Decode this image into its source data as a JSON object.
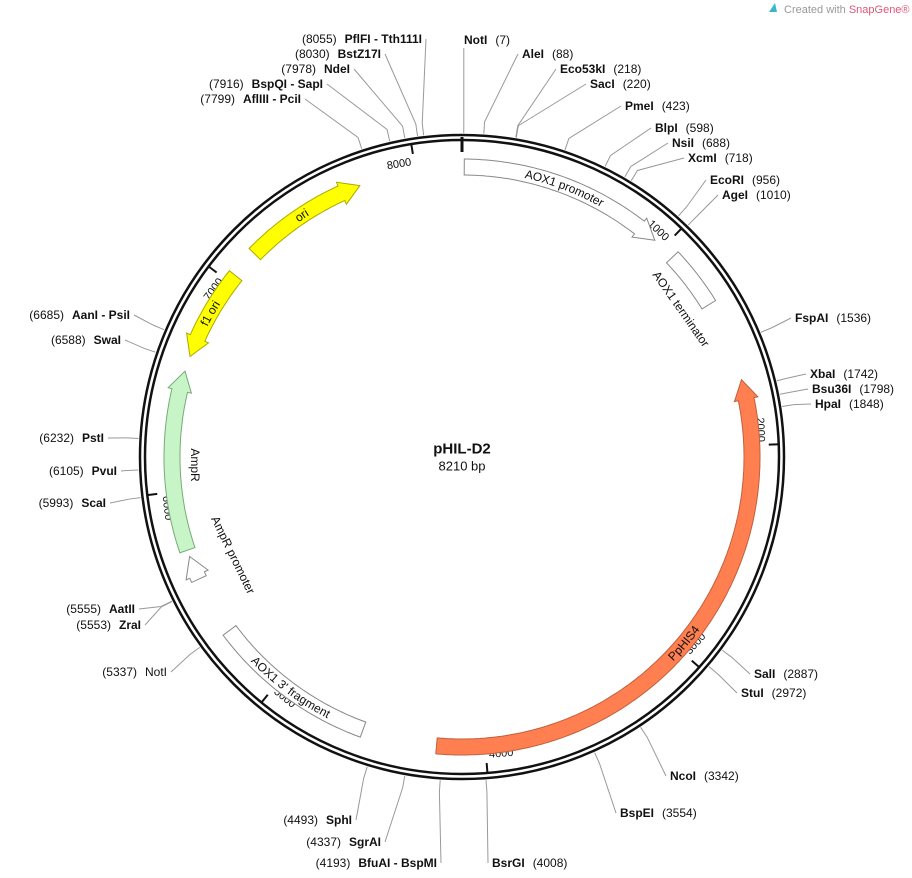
{
  "watermark": {
    "prefix": "Created with",
    "brand": "SnapGene®"
  },
  "map": {
    "name": "pHIL-D2",
    "length": {
      "value": 8210,
      "label": "8210 bp"
    },
    "ticks": [
      1000,
      2000,
      3000,
      4000,
      5000,
      6000,
      7000,
      8000
    ],
    "features": [
      {
        "name": "AOX1 promoter"
      },
      {
        "name": "AOX1 terminator"
      },
      {
        "name": "PpHIS4"
      },
      {
        "name": "AOX1 3' fragment"
      },
      {
        "name": "AmpR promoter"
      },
      {
        "name": "AmpR"
      },
      {
        "name": "f1 ori"
      },
      {
        "name": "ori"
      }
    ],
    "sites": [
      {
        "name": "NotI",
        "position": {
          "value": 7,
          "label": "(7)"
        }
      },
      {
        "name": "AleI",
        "position": {
          "value": 88,
          "label": "(88)"
        }
      },
      {
        "name": "Eco53kI",
        "position": {
          "value": 218,
          "label": "(218)"
        }
      },
      {
        "name": "SacI",
        "position": {
          "value": 220,
          "label": "(220)"
        }
      },
      {
        "name": "PmeI",
        "position": {
          "value": 423,
          "label": "(423)"
        }
      },
      {
        "name": "BlpI",
        "position": {
          "value": 598,
          "label": "(598)"
        }
      },
      {
        "name": "NsiI",
        "position": {
          "value": 688,
          "label": "(688)"
        }
      },
      {
        "name": "XcmI",
        "position": {
          "value": 718,
          "label": "(718)"
        }
      },
      {
        "name": "EcoRI",
        "position": {
          "value": 956,
          "label": "(956)"
        }
      },
      {
        "name": "AgeI",
        "position": {
          "value": 1010,
          "label": "(1010)"
        }
      },
      {
        "name": "FspAI",
        "position": {
          "value": 1536,
          "label": "(1536)"
        }
      },
      {
        "name": "XbaI",
        "position": {
          "value": 1742,
          "label": "(1742)"
        }
      },
      {
        "name": "Bsu36I",
        "position": {
          "value": 1798,
          "label": "(1798)"
        }
      },
      {
        "name": "HpaI",
        "position": {
          "value": 1848,
          "label": "(1848)"
        }
      },
      {
        "name": "SalI",
        "position": {
          "value": 2887,
          "label": "(2887)"
        }
      },
      {
        "name": "StuI",
        "position": {
          "value": 2972,
          "label": "(2972)"
        }
      },
      {
        "name": "NcoI",
        "position": {
          "value": 3342,
          "label": "(3342)"
        }
      },
      {
        "name": "BspEI",
        "position": {
          "value": 3554,
          "label": "(3554)"
        }
      },
      {
        "name": "BsrGI",
        "position": {
          "value": 4008,
          "label": "(4008)"
        }
      },
      {
        "name": "BfuAI - BspMI",
        "position": {
          "value": 4193,
          "label": "(4193)"
        }
      },
      {
        "name": "SgrAI",
        "position": {
          "value": 4337,
          "label": "(4337)"
        }
      },
      {
        "name": "SphI",
        "position": {
          "value": 4493,
          "label": "(4493)"
        }
      },
      {
        "name": "NotI",
        "position": {
          "value": 5337,
          "label": "(5337)"
        }
      },
      {
        "name": "ZraI",
        "position": {
          "value": 5553,
          "label": "(5553)"
        }
      },
      {
        "name": "AatII",
        "position": {
          "value": 5555,
          "label": "(5555)"
        }
      },
      {
        "name": "ScaI",
        "position": {
          "value": 5993,
          "label": "(5993)"
        }
      },
      {
        "name": "PvuI",
        "position": {
          "value": 6105,
          "label": "(6105)"
        }
      },
      {
        "name": "PstI",
        "position": {
          "value": 6232,
          "label": "(6232)"
        }
      },
      {
        "name": "SwaI",
        "position": {
          "value": 6588,
          "label": "(6588)"
        }
      },
      {
        "name": "AanI - PsiI",
        "position": {
          "value": 6685,
          "label": "(6685)"
        }
      },
      {
        "name": "AflIII - PciI",
        "position": {
          "value": 7799,
          "label": "(7799)"
        }
      },
      {
        "name": "BspQI - SapI",
        "position": {
          "value": 7916,
          "label": "(7916)"
        }
      },
      {
        "name": "NdeI",
        "position": {
          "value": 7978,
          "label": "(7978)"
        }
      },
      {
        "name": "BstZ17I",
        "position": {
          "value": 8030,
          "label": "(8030)"
        }
      },
      {
        "name": "PflFI - Tth111I",
        "position": {
          "value": 8055,
          "label": "(8055)"
        }
      }
    ]
  }
}
